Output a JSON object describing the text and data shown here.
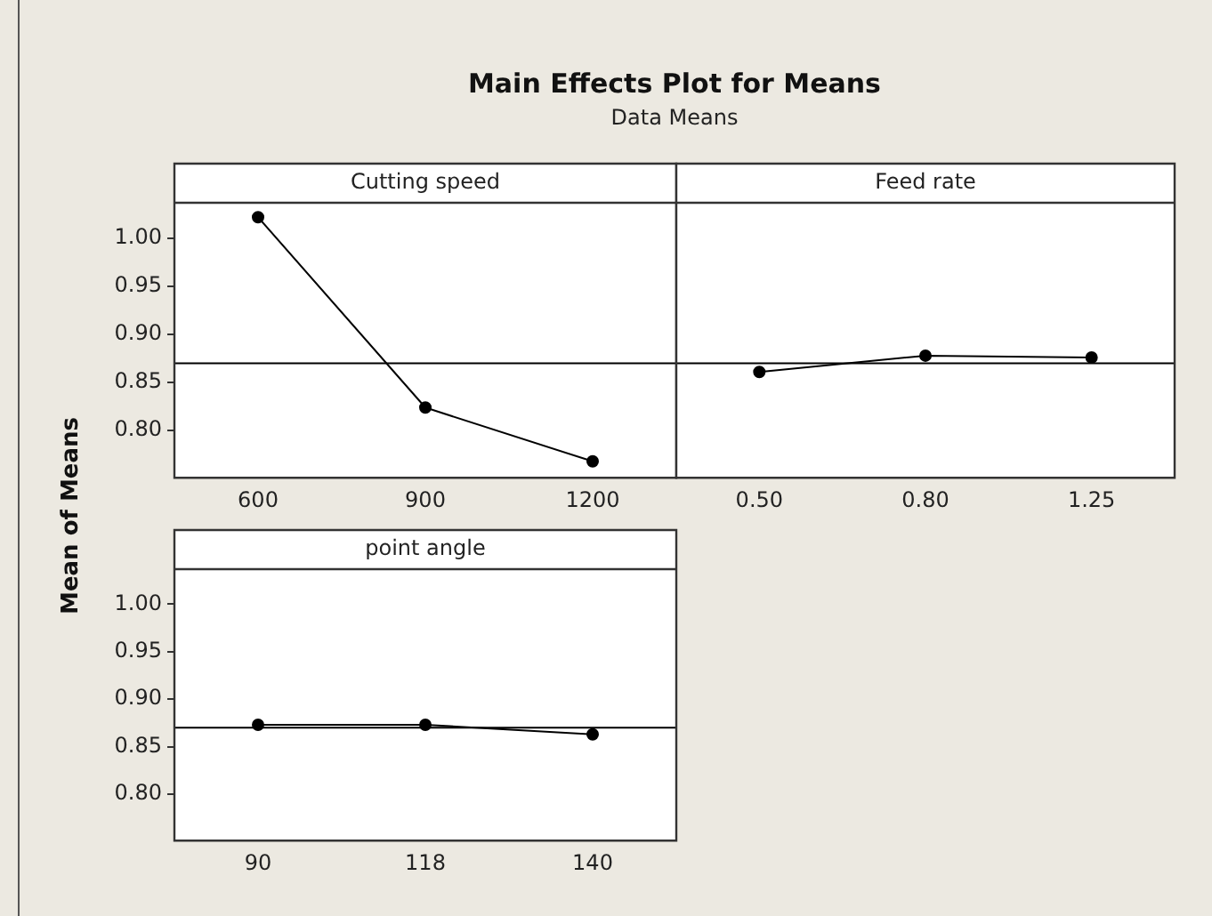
{
  "chart_data": [
    {
      "type": "line",
      "title": "Main Effects Plot for Means",
      "subtitle": "Data Means",
      "ylabel": "Mean of Means",
      "xlabel": "Cutting speed",
      "categories": [
        "600",
        "900",
        "1200"
      ],
      "series": [
        {
          "color": "#000000",
          "values": [
            1.022,
            0.824,
            0.768
          ]
        }
      ],
      "ylim": [
        0.751,
        1.037
      ],
      "yticks": [
        {
          "value": 0.8,
          "label": "0.80"
        },
        {
          "value": 0.85,
          "label": "0.85"
        },
        {
          "value": 0.9,
          "label": "0.90"
        },
        {
          "value": 0.95,
          "label": "0.95"
        },
        {
          "value": 1,
          "label": "1.00"
        }
      ],
      "ref_lines": [
        {
          "axis": "y",
          "value": 0.87,
          "color": "#000000"
        }
      ],
      "marker": "circle",
      "grid": false
    },
    {
      "type": "line",
      "xlabel": "Feed rate",
      "categories": [
        "0.50",
        "0.80",
        "1.25"
      ],
      "series": [
        {
          "color": "#000000",
          "values": [
            0.861,
            0.878,
            0.876
          ]
        }
      ],
      "ylim": [
        0.751,
        1.037
      ],
      "ref_lines": [
        {
          "axis": "y",
          "value": 0.87,
          "color": "#000000"
        }
      ],
      "marker": "circle",
      "grid": false,
      "tick_labels": "x"
    },
    {
      "type": "line",
      "xlabel": "point angle",
      "categories": [
        "90",
        "118",
        "140"
      ],
      "series": [
        {
          "color": "#000000",
          "values": [
            0.873,
            0.873,
            0.863
          ]
        }
      ],
      "ylim": [
        0.751,
        1.037
      ],
      "yticks": [
        {
          "value": 0.8,
          "label": "0.80"
        },
        {
          "value": 0.85,
          "label": "0.85"
        },
        {
          "value": 0.9,
          "label": "0.90"
        },
        {
          "value": 0.95,
          "label": "0.95"
        },
        {
          "value": 1,
          "label": "1.00"
        }
      ],
      "ref_lines": [
        {
          "axis": "y",
          "value": 0.87,
          "color": "#000000"
        }
      ],
      "marker": "circle",
      "grid": false
    }
  ]
}
